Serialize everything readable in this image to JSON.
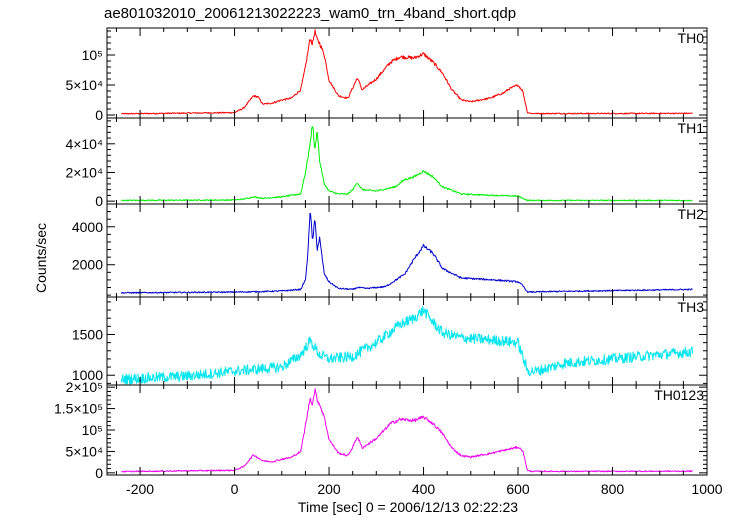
{
  "chart_data": {
    "type": "line",
    "title": "ae801032010_20061213022223_wam0_trn_4band_short.qdp",
    "xlabel": "Time [sec] 0 = 2006/12/13 02:22:23",
    "ylabel": "Counts/sec",
    "xlim": [
      -270,
      1000
    ],
    "x_ticks": [
      -200,
      0,
      200,
      400,
      600,
      800,
      1000
    ],
    "panels": [
      {
        "name": "TH0",
        "color": "#ff0000",
        "ylim": [
          -5000,
          145000
        ],
        "y_ticks": [
          {
            "value": 0,
            "label": "0"
          },
          {
            "value": 50000,
            "label": "5×10⁴"
          },
          {
            "value": 100000,
            "label": "10⁵"
          }
        ],
        "x": [
          -240,
          0,
          20,
          40,
          50,
          60,
          80,
          100,
          120,
          140,
          150,
          160,
          165,
          170,
          175,
          180,
          190,
          200,
          220,
          240,
          250,
          260,
          270,
          300,
          330,
          350,
          380,
          400,
          420,
          440,
          460,
          480,
          500,
          540,
          570,
          580,
          600,
          610,
          620,
          630,
          700,
          800,
          970
        ],
        "y": [
          2000,
          4000,
          12000,
          32000,
          30000,
          18000,
          20000,
          25000,
          28000,
          42000,
          80000,
          128000,
          118000,
          140000,
          125000,
          120000,
          100000,
          58000,
          32000,
          28000,
          45000,
          62000,
          42000,
          60000,
          88000,
          97000,
          95000,
          102000,
          88000,
          70000,
          42000,
          25000,
          22000,
          28000,
          37000,
          43000,
          50000,
          40000,
          4000,
          2500,
          2500,
          2500,
          2800
        ]
      },
      {
        "name": "TH1",
        "color": "#00ee00",
        "ylim": [
          -2000,
          58000
        ],
        "y_ticks": [
          {
            "value": 0,
            "label": "0"
          },
          {
            "value": 20000,
            "label": "2×10⁴"
          },
          {
            "value": 40000,
            "label": "4×10⁴"
          }
        ],
        "x": [
          -240,
          0,
          20,
          40,
          60,
          100,
          140,
          150,
          160,
          165,
          170,
          175,
          180,
          190,
          200,
          220,
          240,
          250,
          260,
          270,
          300,
          340,
          360,
          380,
          400,
          420,
          440,
          480,
          550,
          600,
          610,
          620,
          700,
          970
        ],
        "y": [
          500,
          800,
          1500,
          3000,
          2000,
          3000,
          5000,
          20000,
          40000,
          55000,
          35000,
          50000,
          28000,
          12000,
          7000,
          5000,
          5000,
          8000,
          13000,
          8000,
          7000,
          10000,
          15000,
          17000,
          21000,
          17000,
          10000,
          5000,
          4000,
          3500,
          2000,
          500,
          500,
          500
        ]
      },
      {
        "name": "TH2",
        "color": "#0000cc",
        "ylim": [
          300,
          5200
        ],
        "y_ticks": [
          {
            "value": 2000,
            "label": "2000"
          },
          {
            "value": 4000,
            "label": "4000"
          }
        ],
        "x": [
          -240,
          0,
          50,
          100,
          140,
          150,
          155,
          160,
          165,
          170,
          175,
          180,
          190,
          200,
          220,
          250,
          260,
          280,
          320,
          360,
          380,
          400,
          420,
          440,
          480,
          550,
          600,
          610,
          620,
          700,
          970
        ],
        "y": [
          520,
          560,
          580,
          620,
          700,
          1200,
          2500,
          5000,
          3200,
          4400,
          2800,
          3400,
          1500,
          1100,
          750,
          700,
          800,
          750,
          850,
          1500,
          2300,
          3000,
          2600,
          1800,
          1300,
          1200,
          1100,
          900,
          560,
          600,
          700
        ]
      },
      {
        "name": "TH3",
        "color": "#00e5ee",
        "ylim": [
          880,
          1960
        ],
        "y_ticks": [
          {
            "value": 1000,
            "label": "1000"
          },
          {
            "value": 1500,
            "label": "1500"
          }
        ],
        "x": [
          -240,
          -100,
          0,
          100,
          140,
          160,
          180,
          200,
          250,
          300,
          350,
          380,
          400,
          420,
          440,
          480,
          550,
          600,
          620,
          640,
          700,
          800,
          970
        ],
        "y": [
          950,
          990,
          1050,
          1100,
          1250,
          1420,
          1250,
          1200,
          1230,
          1400,
          1620,
          1700,
          1800,
          1650,
          1520,
          1460,
          1430,
          1400,
          1050,
          1050,
          1150,
          1200,
          1290
        ]
      },
      {
        "name": "TH0123",
        "color": "#ee00ee",
        "ylim": [
          -5000,
          205000
        ],
        "y_ticks": [
          {
            "value": 0,
            "label": "0"
          },
          {
            "value": 50000,
            "label": "5×10⁴"
          },
          {
            "value": 100000,
            "label": "10⁵"
          },
          {
            "value": 150000,
            "label": "1.5×10⁵"
          },
          {
            "value": 200000,
            "label": "2×10⁵"
          }
        ],
        "x": [
          -240,
          0,
          20,
          40,
          60,
          80,
          100,
          120,
          140,
          150,
          160,
          165,
          170,
          175,
          180,
          190,
          200,
          220,
          240,
          250,
          260,
          270,
          300,
          330,
          350,
          380,
          400,
          420,
          440,
          460,
          480,
          500,
          540,
          580,
          600,
          610,
          620,
          630,
          700,
          800,
          970
        ],
        "y": [
          3000,
          6000,
          15000,
          42000,
          28000,
          26000,
          32000,
          36000,
          50000,
          110000,
          175000,
          160000,
          195000,
          170000,
          160000,
          130000,
          78000,
          46000,
          40000,
          60000,
          85000,
          58000,
          80000,
          115000,
          125000,
          122000,
          130000,
          115000,
          92000,
          58000,
          40000,
          37000,
          45000,
          55000,
          60000,
          52000,
          5000,
          3500,
          3500,
          3500,
          4000
        ]
      }
    ]
  }
}
